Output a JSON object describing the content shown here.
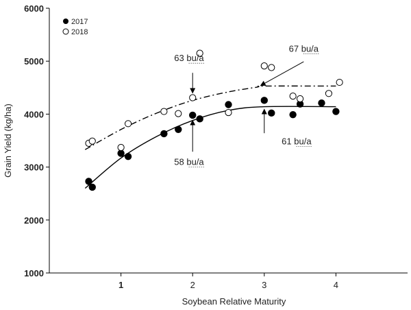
{
  "chart_data": {
    "type": "scatter",
    "title": "",
    "xlabel": "Soybean Relative Maturity",
    "ylabel": "Grain Yield (kg/ha)",
    "xlim": [
      0,
      5
    ],
    "ylim": [
      1000,
      6000
    ],
    "x_ticks": [
      1,
      2,
      3,
      4
    ],
    "x_tick_labels": [
      "1",
      "2",
      "3",
      "4"
    ],
    "y_ticks": [
      1000,
      2000,
      3000,
      4000,
      5000,
      6000
    ],
    "y_tick_labels": [
      "1000",
      "2000",
      "3000",
      "4000",
      "5000",
      "6000"
    ],
    "grid": false,
    "legend": {
      "position": "top-left",
      "entries": [
        {
          "label": "2017",
          "marker": "filled-circle"
        },
        {
          "label": "2018",
          "marker": "open-circle"
        }
      ]
    },
    "series": [
      {
        "name": "2017",
        "marker": "filled",
        "color": "#000000",
        "points": [
          {
            "x": 0.55,
            "y": 2730
          },
          {
            "x": 0.6,
            "y": 2620
          },
          {
            "x": 1.0,
            "y": 3260
          },
          {
            "x": 1.1,
            "y": 3200
          },
          {
            "x": 1.6,
            "y": 3630
          },
          {
            "x": 1.8,
            "y": 3710
          },
          {
            "x": 2.0,
            "y": 3980
          },
          {
            "x": 2.1,
            "y": 3910
          },
          {
            "x": 2.5,
            "y": 4180
          },
          {
            "x": 3.0,
            "y": 4260
          },
          {
            "x": 3.1,
            "y": 4020
          },
          {
            "x": 3.4,
            "y": 3990
          },
          {
            "x": 3.5,
            "y": 4190
          },
          {
            "x": 3.8,
            "y": 4210
          },
          {
            "x": 4.0,
            "y": 4050
          }
        ],
        "fit": {
          "style": "solid",
          "points": [
            [
              0.5,
              2600
            ],
            [
              1.0,
              3170
            ],
            [
              1.5,
              3580
            ],
            [
              2.0,
              3880
            ],
            [
              2.5,
              4070
            ],
            [
              3.0,
              4140
            ],
            [
              4.0,
              4140
            ]
          ]
        }
      },
      {
        "name": "2018",
        "marker": "open",
        "color": "#000000",
        "points": [
          {
            "x": 0.55,
            "y": 3450
          },
          {
            "x": 0.6,
            "y": 3490
          },
          {
            "x": 1.0,
            "y": 3370
          },
          {
            "x": 1.1,
            "y": 3820
          },
          {
            "x": 1.6,
            "y": 4050
          },
          {
            "x": 1.8,
            "y": 4010
          },
          {
            "x": 2.0,
            "y": 4310
          },
          {
            "x": 2.1,
            "y": 5150
          },
          {
            "x": 2.5,
            "y": 4030
          },
          {
            "x": 3.0,
            "y": 4910
          },
          {
            "x": 3.1,
            "y": 4880
          },
          {
            "x": 3.4,
            "y": 4340
          },
          {
            "x": 3.5,
            "y": 4290
          },
          {
            "x": 3.9,
            "y": 4390
          },
          {
            "x": 4.05,
            "y": 4600
          }
        ],
        "fit": {
          "style": "dash-dot",
          "points": [
            [
              0.5,
              3330
            ],
            [
              1.0,
              3710
            ],
            [
              1.5,
              4020
            ],
            [
              2.0,
              4260
            ],
            [
              2.5,
              4420
            ],
            [
              2.9,
              4510
            ],
            [
              3.0,
              4530
            ],
            [
              4.0,
              4530
            ]
          ]
        }
      }
    ],
    "annotations": [
      {
        "text": "63 bu/a",
        "underline": "bu/a",
        "arrow_from": [
          2.0,
          4780
        ],
        "arrow_to": [
          2.0,
          4400
        ],
        "label_at": [
          1.95,
          5000
        ],
        "anchor": "middle"
      },
      {
        "text": "67 bu/a",
        "underline": "bu/a",
        "arrow_from": [
          3.55,
          4990
        ],
        "arrow_to": [
          2.95,
          4540
        ],
        "label_at": [
          3.55,
          5180
        ],
        "anchor": "middle"
      },
      {
        "text": "58 bu/a",
        "underline": "bu/a",
        "arrow_from": [
          2.0,
          3290
        ],
        "arrow_to": [
          2.0,
          3880
        ],
        "label_at": [
          1.95,
          3040
        ],
        "anchor": "middle"
      },
      {
        "text": "61 bu/a",
        "underline": "bu/a",
        "arrow_from": [
          3.0,
          3640
        ],
        "arrow_to": [
          3.0,
          4090
        ],
        "label_at": [
          3.45,
          3430
        ],
        "anchor": "middle"
      }
    ]
  }
}
